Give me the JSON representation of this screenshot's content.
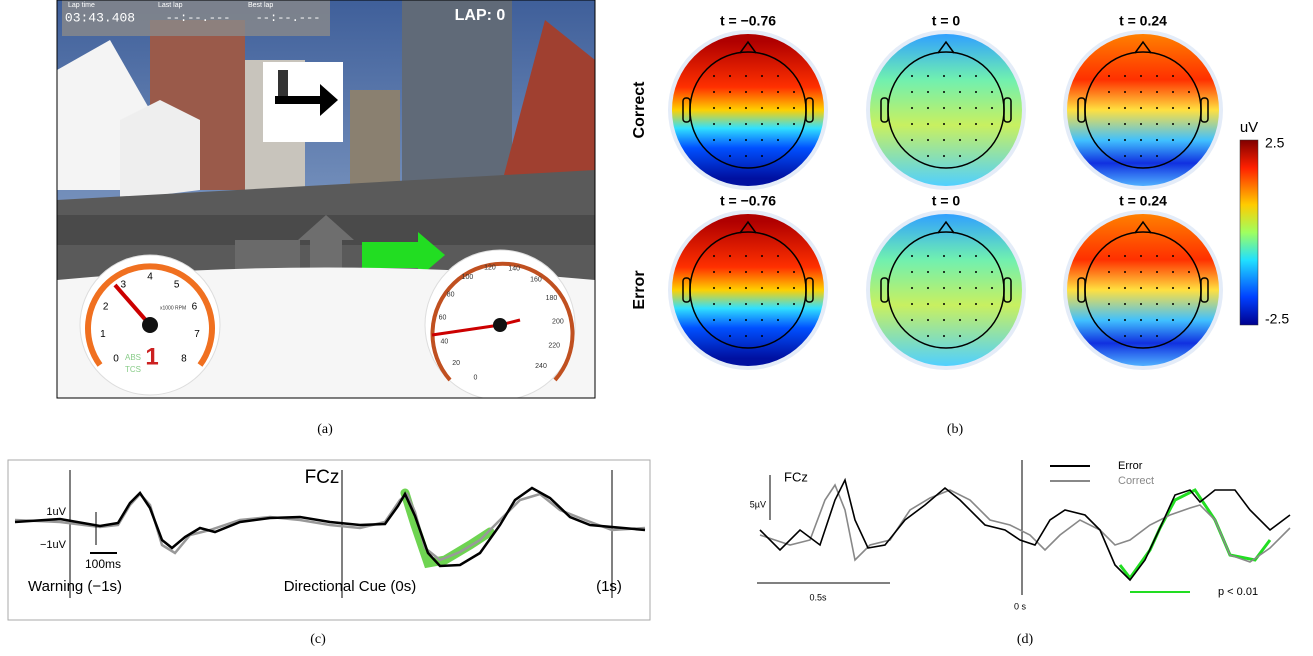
{
  "panel_a": {
    "caption": "(a)",
    "hud": {
      "lap": "LAP: 0",
      "lap_time_label": "Lap time",
      "lap_time": "03:43.408",
      "last_lap_label": "Last lap",
      "last_lap": "--:--.---",
      "best_lap_label": "Best lap",
      "best_lap": "--:--.---"
    },
    "tach": {
      "ticks": [
        "0",
        "1",
        "2",
        "3",
        "4",
        "5",
        "6",
        "7",
        "8"
      ],
      "unit": "x1000 RPM",
      "gear": "1",
      "abs": "ABS",
      "tcs": "TCS"
    },
    "speedo": {
      "ticks": [
        "0",
        "20",
        "40",
        "60",
        "80",
        "100",
        "120",
        "140",
        "160",
        "180",
        "200",
        "220",
        "240"
      ]
    }
  },
  "panel_b": {
    "caption": "(b)",
    "rows": [
      "Correct",
      "Error"
    ],
    "times": [
      "t = −0.76",
      "t = 0",
      "t = 0.24"
    ],
    "colorbar": {
      "unit": "uV",
      "max": "2.5",
      "min": "-2.5"
    }
  },
  "panel_c": {
    "caption": "(c)",
    "title": "FCz",
    "scale_labels": [
      "1uV",
      "−1uV"
    ],
    "time_scale": "100ms",
    "events": [
      "Warning (−1s)",
      "Directional Cue (0s)",
      "(1s)"
    ]
  },
  "panel_d": {
    "caption": "(d)",
    "title": "FCz",
    "amplitude_scale": "5µV",
    "time_scale": "0.5s",
    "onset": "0 s",
    "legend": [
      "Error",
      "Correct"
    ],
    "significance": "p < 0.01"
  }
}
